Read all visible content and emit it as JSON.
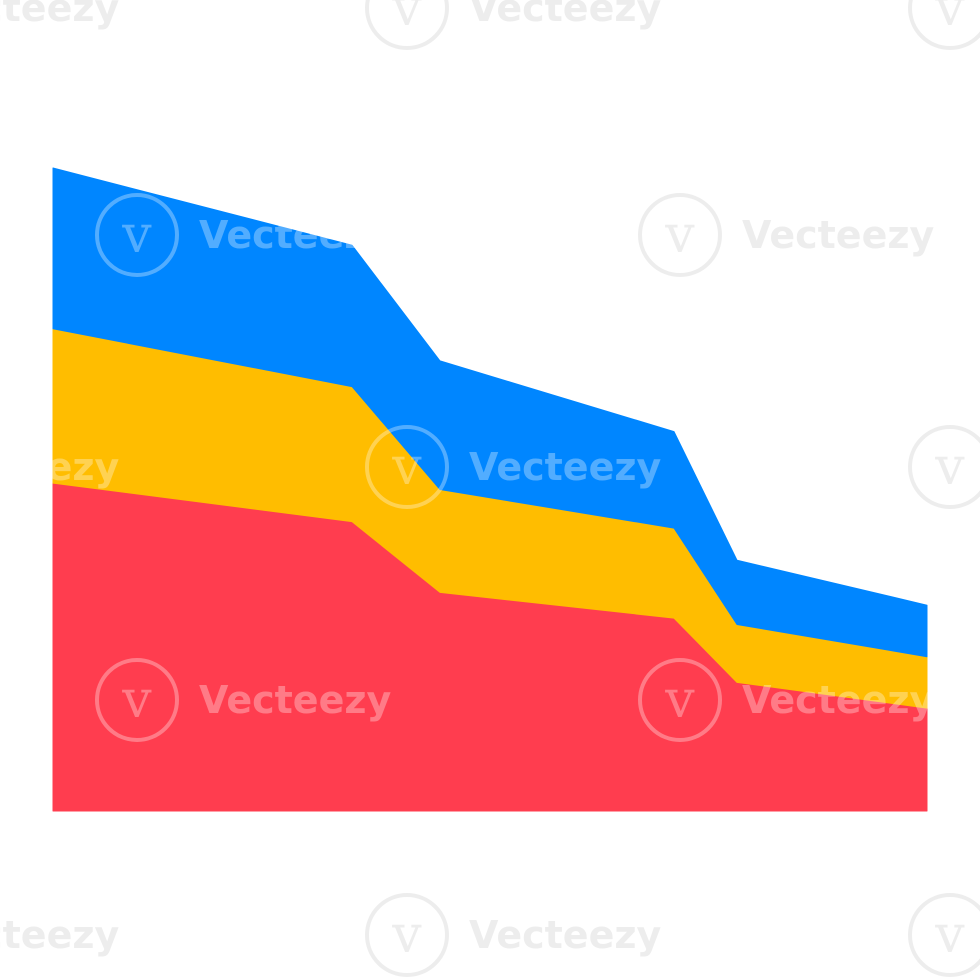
{
  "chart_data": {
    "type": "area",
    "stacked": true,
    "x": [
      0,
      1,
      2,
      3,
      4,
      5
    ],
    "ylim": [
      0,
      100
    ],
    "grid": false,
    "legend": "none",
    "title": "",
    "xlabel": "",
    "ylabel": "",
    "series": [
      {
        "values": [
          51,
          45,
          34,
          30,
          20,
          16
        ],
        "color": "#FF3D4F"
      },
      {
        "values": [
          24,
          21,
          16,
          14,
          9,
          8
        ],
        "color": "#FFBD00"
      },
      {
        "values": [
          25,
          22,
          20,
          15,
          10,
          8
        ],
        "color": "#0086FF"
      }
    ]
  },
  "watermark": {
    "text": "Vecteezy"
  }
}
